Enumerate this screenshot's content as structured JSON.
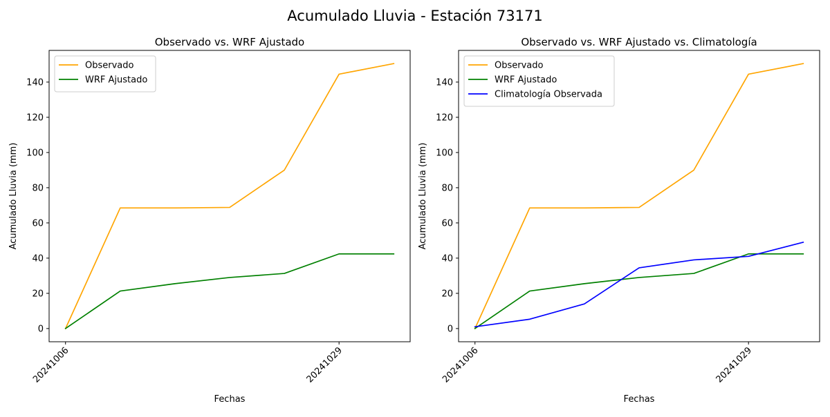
{
  "figure": {
    "suptitle": "Acumulado Lluvia - Estación 73171"
  },
  "chart_data": [
    {
      "type": "line",
      "title": "Observado vs. WRF Ajustado",
      "xlabel": "Fechas",
      "ylabel": "Acumulado Lluvia (mm)",
      "x_positions": [
        0,
        1,
        2,
        3,
        4,
        5,
        6
      ],
      "xtick_positions": [
        0,
        5
      ],
      "xtick_labels": [
        "20241006",
        "20241029"
      ],
      "xtick_rotation_deg": 45,
      "xlim": [
        -0.3,
        6.3
      ],
      "ylim": [
        -7.5,
        158
      ],
      "yticks": [
        0,
        20,
        40,
        60,
        80,
        100,
        120,
        140
      ],
      "legend_position": "upper left",
      "grid": false,
      "series": [
        {
          "name": "Observado",
          "color": "#ffa500",
          "values": [
            0,
            68.5,
            68.5,
            68.8,
            90,
            144.5,
            150.5
          ]
        },
        {
          "name": "WRF Ajustado",
          "color": "#008000",
          "values": [
            0,
            21.3,
            25.5,
            29,
            31.3,
            42.4,
            42.4
          ]
        }
      ]
    },
    {
      "type": "line",
      "title": "Observado vs. WRF Ajustado vs. Climatología",
      "xlabel": "Fechas",
      "ylabel": "Acumulado Lluvia (mm)",
      "x_positions": [
        0,
        1,
        2,
        3,
        4,
        5,
        6
      ],
      "xtick_positions": [
        0,
        5
      ],
      "xtick_labels": [
        "20241006",
        "20241029"
      ],
      "xtick_rotation_deg": 45,
      "xlim": [
        -0.3,
        6.3
      ],
      "ylim": [
        -7.5,
        158
      ],
      "yticks": [
        0,
        20,
        40,
        60,
        80,
        100,
        120,
        140
      ],
      "legend_position": "upper left",
      "grid": false,
      "series": [
        {
          "name": "Observado",
          "color": "#ffa500",
          "values": [
            0,
            68.5,
            68.5,
            68.8,
            90,
            144.5,
            150.5
          ]
        },
        {
          "name": "WRF Ajustado",
          "color": "#008000",
          "values": [
            0,
            21.3,
            25.5,
            29,
            31.3,
            42.4,
            42.4
          ]
        },
        {
          "name": "Climatología Observada",
          "color": "#0000ff",
          "values": [
            1,
            5.3,
            14,
            34.5,
            39,
            41,
            49
          ]
        }
      ]
    }
  ]
}
